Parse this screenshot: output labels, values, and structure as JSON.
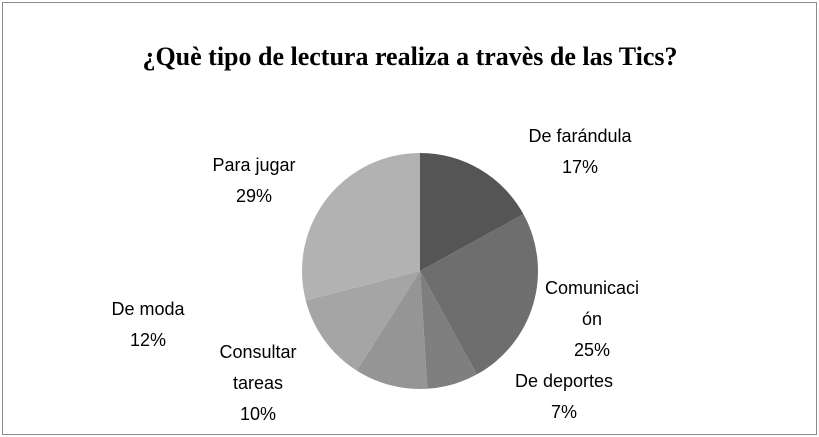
{
  "chart_data": {
    "type": "pie",
    "title": "¿Què tipo de lectura realiza a travès de las Tics?",
    "categories": [
      "De farándula",
      "Comunicación",
      "De deportes",
      "Consultar tareas",
      "De moda",
      "Para jugar"
    ],
    "values": [
      17,
      25,
      7,
      10,
      12,
      29
    ],
    "value_labels": [
      "17%",
      "25%",
      "7%",
      "10%",
      "12%",
      "29%"
    ],
    "colors": [
      "#555555",
      "#6e6e6e",
      "#7f7f7f",
      "#959595",
      "#a5a5a5",
      "#b2b2b2"
    ]
  }
}
